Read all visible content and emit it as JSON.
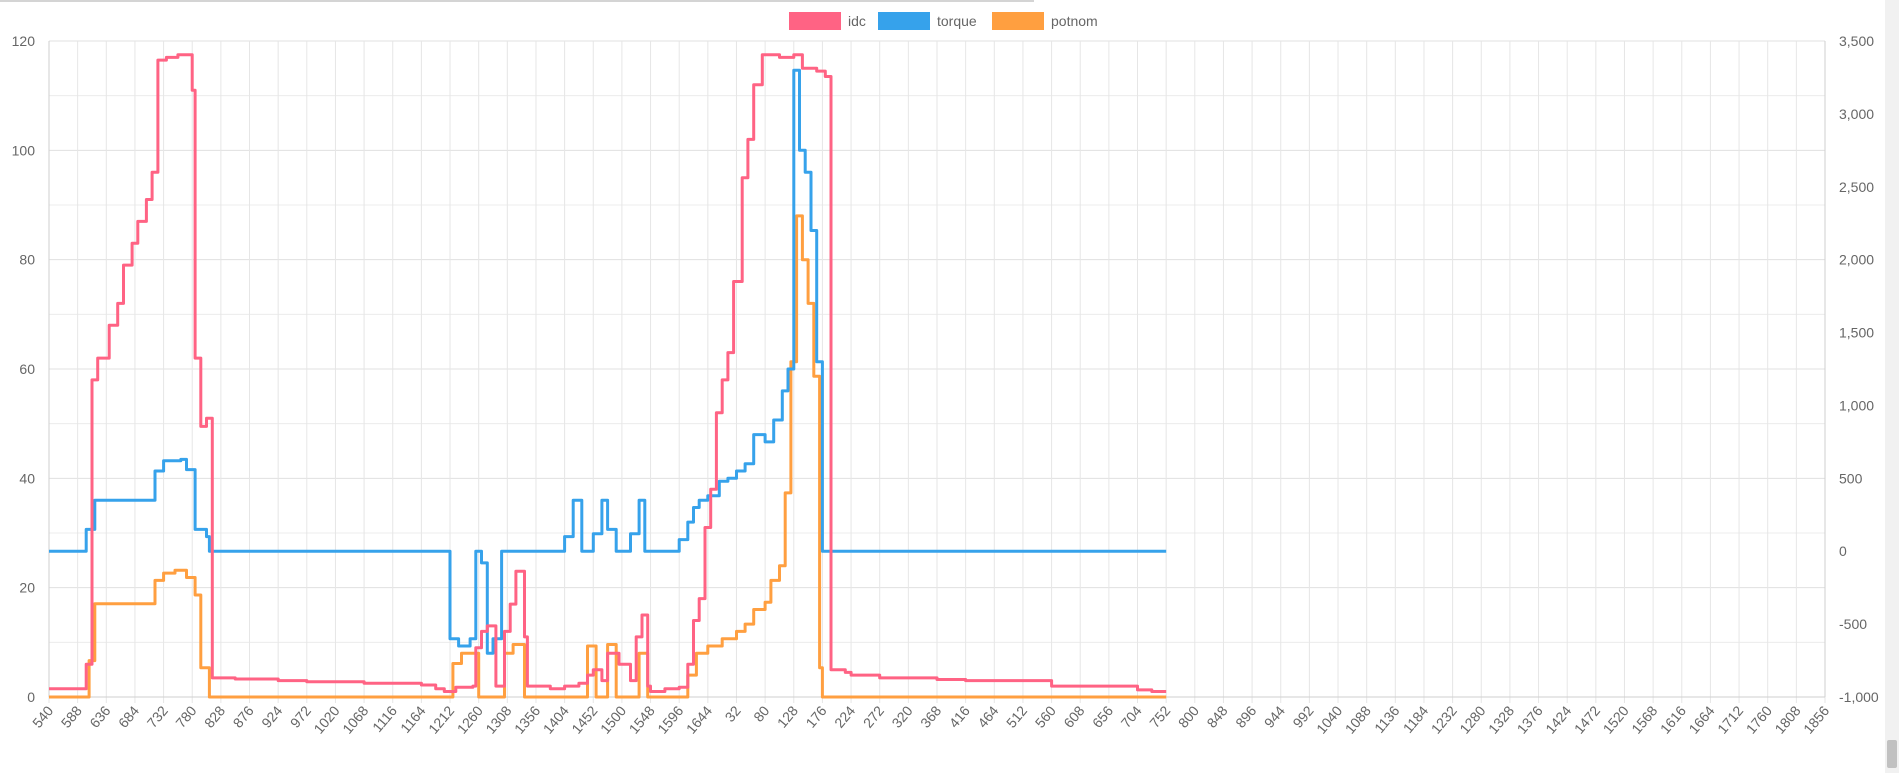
{
  "chart_data": {
    "type": "line",
    "title": "",
    "legend_position": "top",
    "grid": true,
    "series": [
      {
        "name": "idc",
        "color": "#ff6384",
        "axis": "left"
      },
      {
        "name": "torque",
        "color": "#36a2eb",
        "axis": "right"
      },
      {
        "name": "potnom",
        "color": "#ff9f40",
        "axis": "right"
      }
    ],
    "x_tick_labels": [
      "540",
      "588",
      "636",
      "684",
      "732",
      "780",
      "828",
      "876",
      "924",
      "972",
      "1020",
      "1068",
      "1116",
      "1164",
      "1212",
      "1260",
      "1308",
      "1356",
      "1404",
      "1452",
      "1500",
      "1548",
      "1596",
      "1644",
      "32",
      "80",
      "128",
      "176",
      "224",
      "272",
      "320",
      "368",
      "416",
      "464",
      "512",
      "560",
      "608",
      "656",
      "704",
      "752",
      "800",
      "848",
      "896",
      "944",
      "992",
      "1040",
      "1088",
      "1136",
      "1184",
      "1232",
      "1280",
      "1328",
      "1376",
      "1424",
      "1472",
      "1520",
      "1568",
      "1616",
      "1664",
      "1712",
      "1760",
      "1808",
      "1856"
    ],
    "y_left": {
      "ticks": [
        "0",
        "20",
        "40",
        "60",
        "80",
        "100",
        "120"
      ],
      "range": [
        0,
        120
      ]
    },
    "y_right": {
      "ticks": [
        "-1,000",
        "-500",
        "0",
        "500",
        "1,000",
        "1,500",
        "2,000",
        "2,500",
        "3,000",
        "3,500"
      ],
      "range": [
        -1000,
        3500
      ]
    },
    "x_index_range": [
      0,
      62
    ],
    "data": {
      "idc": [
        [
          0,
          1.5
        ],
        [
          1.2,
          1.5
        ],
        [
          1.3,
          6
        ],
        [
          1.5,
          58
        ],
        [
          1.7,
          62
        ],
        [
          2.1,
          68
        ],
        [
          2.4,
          72
        ],
        [
          2.6,
          79
        ],
        [
          2.9,
          83
        ],
        [
          3.1,
          87
        ],
        [
          3.4,
          91
        ],
        [
          3.6,
          96
        ],
        [
          3.8,
          116.5
        ],
        [
          4.1,
          117
        ],
        [
          4.5,
          117.5
        ],
        [
          4.9,
          117.5
        ],
        [
          5.0,
          111
        ],
        [
          5.1,
          62
        ],
        [
          5.3,
          49.5
        ],
        [
          5.5,
          51
        ],
        [
          5.7,
          3.5
        ],
        [
          6.5,
          3.3
        ],
        [
          8.0,
          3.0
        ],
        [
          9.0,
          2.8
        ],
        [
          11.0,
          2.5
        ],
        [
          13.0,
          2.2
        ],
        [
          13.5,
          1.5
        ],
        [
          13.8,
          1.0
        ],
        [
          14.2,
          1.8
        ],
        [
          14.8,
          2.0
        ],
        [
          14.9,
          9
        ],
        [
          15.1,
          12
        ],
        [
          15.3,
          13
        ],
        [
          15.6,
          2
        ],
        [
          15.9,
          12
        ],
        [
          16.1,
          17
        ],
        [
          16.3,
          23
        ],
        [
          16.6,
          11
        ],
        [
          16.7,
          2
        ],
        [
          17.5,
          1.5
        ],
        [
          18.0,
          2
        ],
        [
          18.5,
          2.5
        ],
        [
          18.8,
          4
        ],
        [
          19.0,
          5
        ],
        [
          19.3,
          3
        ],
        [
          19.5,
          8
        ],
        [
          19.9,
          6
        ],
        [
          20.3,
          3
        ],
        [
          20.5,
          11
        ],
        [
          20.7,
          15
        ],
        [
          20.9,
          2
        ],
        [
          21.0,
          1
        ],
        [
          21.5,
          1.5
        ],
        [
          22.0,
          1.8
        ],
        [
          22.3,
          6
        ],
        [
          22.5,
          14
        ],
        [
          22.7,
          18
        ],
        [
          22.9,
          31
        ],
        [
          23.1,
          38
        ],
        [
          23.3,
          52
        ],
        [
          23.5,
          58
        ],
        [
          23.7,
          63
        ],
        [
          23.9,
          76
        ],
        [
          24.2,
          95
        ],
        [
          24.4,
          102
        ],
        [
          24.6,
          112
        ],
        [
          24.9,
          117.5
        ],
        [
          25.5,
          117
        ],
        [
          26.0,
          117.5
        ],
        [
          26.3,
          115
        ],
        [
          26.8,
          114.5
        ],
        [
          27.1,
          113.5
        ],
        [
          27.3,
          5
        ],
        [
          27.8,
          4.5
        ],
        [
          28.0,
          4
        ],
        [
          29.0,
          3.5
        ],
        [
          31.0,
          3.2
        ],
        [
          32.0,
          3.0
        ],
        [
          35.0,
          2.0
        ],
        [
          38.0,
          1.3
        ],
        [
          38.5,
          1.0
        ],
        [
          39.0,
          1.0
        ]
      ],
      "torque": [
        [
          0,
          0
        ],
        [
          1.2,
          0
        ],
        [
          1.3,
          150
        ],
        [
          1.6,
          350
        ],
        [
          3.5,
          350
        ],
        [
          3.7,
          550
        ],
        [
          4.0,
          620
        ],
        [
          4.6,
          630
        ],
        [
          4.8,
          560
        ],
        [
          5.1,
          150
        ],
        [
          5.5,
          100
        ],
        [
          5.6,
          0
        ],
        [
          13.7,
          0
        ],
        [
          14.0,
          -600
        ],
        [
          14.3,
          -650
        ],
        [
          14.7,
          -600
        ],
        [
          14.9,
          0
        ],
        [
          15.1,
          -80
        ],
        [
          15.3,
          -700
        ],
        [
          15.5,
          -600
        ],
        [
          15.8,
          0
        ],
        [
          17.5,
          0
        ],
        [
          18.0,
          100
        ],
        [
          18.3,
          350
        ],
        [
          18.6,
          0
        ],
        [
          19.0,
          120
        ],
        [
          19.3,
          350
        ],
        [
          19.5,
          150
        ],
        [
          19.8,
          0
        ],
        [
          20.3,
          120
        ],
        [
          20.6,
          350
        ],
        [
          20.8,
          0
        ],
        [
          21.8,
          0
        ],
        [
          22.0,
          80
        ],
        [
          22.3,
          200
        ],
        [
          22.5,
          300
        ],
        [
          22.7,
          350
        ],
        [
          23.0,
          380
        ],
        [
          23.4,
          480
        ],
        [
          23.7,
          500
        ],
        [
          24.0,
          550
        ],
        [
          24.3,
          600
        ],
        [
          24.6,
          800
        ],
        [
          25.0,
          750
        ],
        [
          25.3,
          900
        ],
        [
          25.6,
          1100
        ],
        [
          25.8,
          1250
        ],
        [
          26.0,
          3300
        ],
        [
          26.2,
          2750
        ],
        [
          26.4,
          2600
        ],
        [
          26.6,
          2200
        ],
        [
          26.8,
          1300
        ],
        [
          27.0,
          0
        ],
        [
          39.0,
          0
        ]
      ],
      "potnom": [
        [
          0,
          -1000
        ],
        [
          1.2,
          -1000
        ],
        [
          1.4,
          -750
        ],
        [
          1.6,
          -360
        ],
        [
          3.5,
          -360
        ],
        [
          3.7,
          -200
        ],
        [
          4.0,
          -150
        ],
        [
          4.4,
          -130
        ],
        [
          4.8,
          -180
        ],
        [
          5.1,
          -300
        ],
        [
          5.3,
          -800
        ],
        [
          5.6,
          -1000
        ],
        [
          13.7,
          -1000
        ],
        [
          14.1,
          -770
        ],
        [
          14.4,
          -700
        ],
        [
          14.8,
          -700
        ],
        [
          15.0,
          -1000
        ],
        [
          15.6,
          -1000
        ],
        [
          15.9,
          -700
        ],
        [
          16.2,
          -640
        ],
        [
          16.6,
          -1000
        ],
        [
          18.5,
          -1000
        ],
        [
          18.8,
          -650
        ],
        [
          19.1,
          -1000
        ],
        [
          19.5,
          -640
        ],
        [
          19.8,
          -1000
        ],
        [
          20.3,
          -1000
        ],
        [
          20.6,
          -700
        ],
        [
          20.9,
          -1000
        ],
        [
          22.0,
          -1000
        ],
        [
          22.3,
          -850
        ],
        [
          22.6,
          -700
        ],
        [
          23.0,
          -650
        ],
        [
          23.5,
          -600
        ],
        [
          24.0,
          -550
        ],
        [
          24.3,
          -500
        ],
        [
          24.6,
          -400
        ],
        [
          25.0,
          -350
        ],
        [
          25.2,
          -200
        ],
        [
          25.5,
          -100
        ],
        [
          25.7,
          400
        ],
        [
          25.9,
          1300
        ],
        [
          26.1,
          2300
        ],
        [
          26.3,
          2000
        ],
        [
          26.5,
          1700
        ],
        [
          26.7,
          1200
        ],
        [
          26.9,
          -800
        ],
        [
          27.0,
          -1000
        ],
        [
          39.0,
          -1000
        ]
      ]
    }
  }
}
